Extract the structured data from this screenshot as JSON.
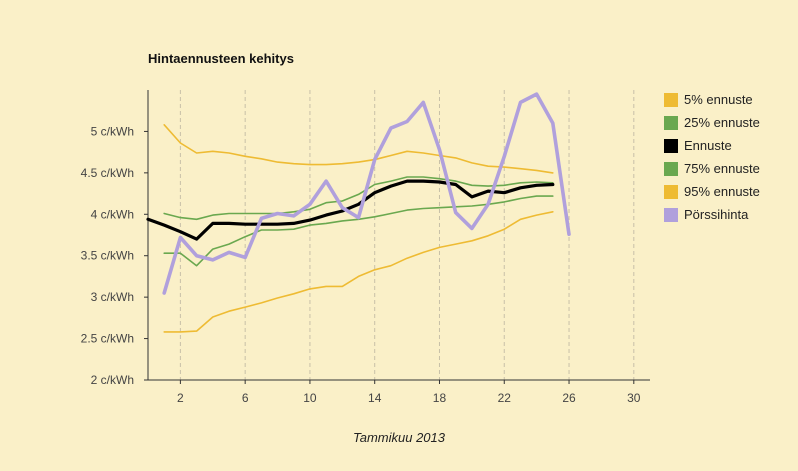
{
  "chart_data": {
    "type": "line",
    "title": "Hintaennusteen kehitys",
    "xlabel": "Tammikuu 2013",
    "ylabel": "",
    "xlim": [
      0,
      31
    ],
    "ylim": [
      2,
      5.5
    ],
    "xticks": [
      2,
      6,
      10,
      14,
      18,
      22,
      26,
      30
    ],
    "yticks": [
      2,
      2.5,
      3,
      3.5,
      4,
      4.5,
      5
    ],
    "ytick_labels": [
      "2 c/kWh",
      "2.5 c/kWh",
      "3 c/kWh",
      "3.5 c/kWh",
      "4 c/kWh",
      "4.5 c/kWh",
      "5 c/kWh"
    ],
    "series": [
      {
        "name": "5% ennuste",
        "color": "#eebb33",
        "width": 1.6,
        "x": [
          1,
          2,
          3,
          4,
          5,
          6,
          7,
          8,
          9,
          10,
          11,
          12,
          13,
          14,
          15,
          16,
          17,
          18,
          19,
          20,
          21,
          22,
          23,
          24,
          25
        ],
        "y": [
          5.08,
          4.86,
          4.74,
          4.76,
          4.74,
          4.7,
          4.67,
          4.63,
          4.61,
          4.6,
          4.6,
          4.61,
          4.63,
          4.66,
          4.71,
          4.76,
          4.74,
          4.71,
          4.68,
          4.62,
          4.58,
          4.57,
          4.55,
          4.53,
          4.5
        ]
      },
      {
        "name": "25% ennuste",
        "color": "#6aa84f",
        "width": 1.6,
        "x": [
          1,
          2,
          3,
          4,
          5,
          6,
          7,
          8,
          9,
          10,
          11,
          12,
          13,
          14,
          15,
          16,
          17,
          18,
          19,
          20,
          21,
          22,
          23,
          24,
          25
        ],
        "y": [
          4.01,
          3.96,
          3.94,
          3.99,
          4.01,
          4.01,
          4.01,
          4.01,
          4.03,
          4.06,
          4.14,
          4.16,
          4.24,
          4.36,
          4.4,
          4.45,
          4.45,
          4.43,
          4.4,
          4.35,
          4.34,
          4.35,
          4.38,
          4.39,
          4.38
        ]
      },
      {
        "name": "Ennuste",
        "color": "#000000",
        "width": 3.2,
        "x": [
          0,
          1,
          2,
          3,
          4,
          5,
          6,
          7,
          8,
          9,
          10,
          11,
          12,
          13,
          14,
          15,
          16,
          17,
          18,
          19,
          20,
          21,
          22,
          23,
          24,
          25
        ],
        "y": [
          3.94,
          3.87,
          3.79,
          3.7,
          3.89,
          3.89,
          3.88,
          3.88,
          3.88,
          3.89,
          3.93,
          3.99,
          4.04,
          4.12,
          4.26,
          4.34,
          4.4,
          4.4,
          4.39,
          4.36,
          4.21,
          4.28,
          4.26,
          4.32,
          4.35,
          4.36
        ]
      },
      {
        "name": "75% ennuste",
        "color": "#6aa84f",
        "width": 1.6,
        "x": [
          1,
          2,
          3,
          4,
          5,
          6,
          7,
          8,
          9,
          10,
          11,
          12,
          13,
          14,
          15,
          16,
          17,
          18,
          19,
          20,
          21,
          22,
          23,
          24,
          25
        ],
        "y": [
          3.53,
          3.53,
          3.38,
          3.58,
          3.64,
          3.73,
          3.81,
          3.81,
          3.82,
          3.87,
          3.89,
          3.92,
          3.94,
          3.97,
          4.01,
          4.05,
          4.07,
          4.08,
          4.09,
          4.1,
          4.12,
          4.15,
          4.19,
          4.22,
          4.22
        ]
      },
      {
        "name": "95% ennuste",
        "color": "#eebb33",
        "width": 1.6,
        "x": [
          1,
          2,
          3,
          4,
          5,
          6,
          7,
          8,
          9,
          10,
          11,
          12,
          13,
          14,
          15,
          16,
          17,
          18,
          19,
          20,
          21,
          22,
          23,
          24,
          25
        ],
        "y": [
          2.58,
          2.58,
          2.59,
          2.76,
          2.83,
          2.88,
          2.93,
          2.99,
          3.04,
          3.1,
          3.13,
          3.13,
          3.25,
          3.33,
          3.38,
          3.47,
          3.54,
          3.6,
          3.64,
          3.68,
          3.74,
          3.82,
          3.94,
          3.99,
          4.03
        ]
      },
      {
        "name": "Pörssihinta",
        "color": "#b0a0dc",
        "width": 3.6,
        "x": [
          1,
          2,
          3,
          4,
          5,
          6,
          7,
          8,
          9,
          10,
          11,
          12,
          13,
          14,
          15,
          16,
          17,
          18,
          19,
          20,
          21,
          22,
          23,
          24,
          25,
          26
        ],
        "y": [
          3.05,
          3.72,
          3.5,
          3.45,
          3.54,
          3.48,
          3.95,
          4.01,
          3.98,
          4.12,
          4.4,
          4.08,
          3.96,
          4.66,
          5.04,
          5.12,
          5.35,
          4.78,
          4.02,
          3.83,
          4.12,
          4.7,
          5.35,
          5.45,
          5.1,
          3.76
        ]
      }
    ],
    "legend_position": "right"
  }
}
